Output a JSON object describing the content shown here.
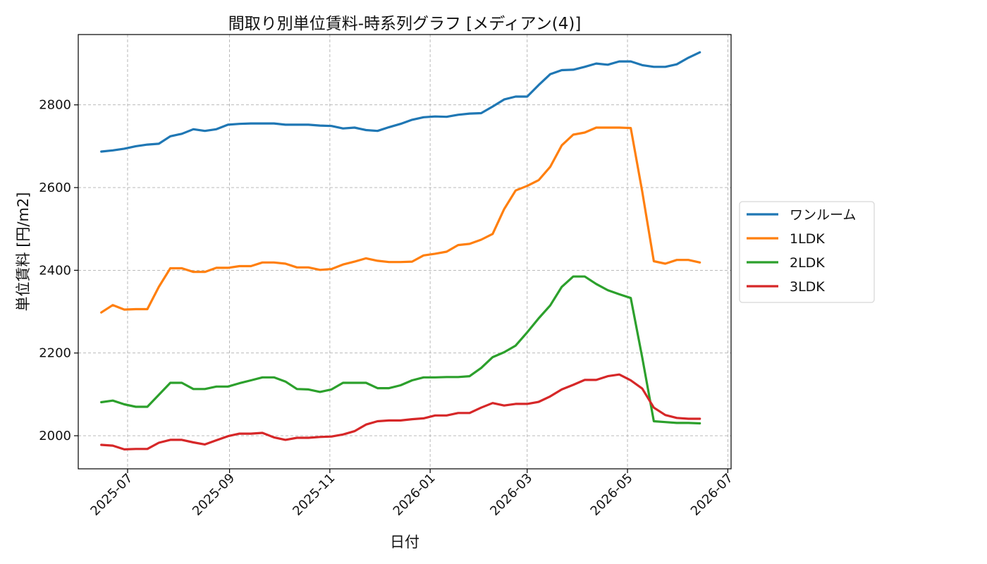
{
  "chart_data": {
    "type": "line",
    "title": "間取り別単位賃料-時系列グラフ [メディアン(4)]",
    "xlabel": "日付",
    "ylabel": "単位賃料 [円/m2]",
    "x_axis_type": "date",
    "xlim": [
      "2025-06-01",
      "2026-07-03"
    ],
    "ylim": [
      1920,
      2970
    ],
    "x_ticks": [
      "2025-07",
      "2025-09",
      "2025-11",
      "2026-01",
      "2026-03",
      "2026-05",
      "2026-07"
    ],
    "y_ticks": [
      2000,
      2200,
      2400,
      2600,
      2800
    ],
    "grid": true,
    "legend_position": "right",
    "x": [
      "2025-06-15",
      "2025-06-22",
      "2025-06-29",
      "2025-07-06",
      "2025-07-13",
      "2025-07-20",
      "2025-07-27",
      "2025-08-03",
      "2025-08-10",
      "2025-08-17",
      "2025-08-24",
      "2025-08-31",
      "2025-09-07",
      "2025-09-14",
      "2025-09-21",
      "2025-09-28",
      "2025-10-05",
      "2025-10-12",
      "2025-10-19",
      "2025-10-26",
      "2025-11-02",
      "2025-11-09",
      "2025-11-16",
      "2025-11-23",
      "2025-11-30",
      "2025-12-07",
      "2025-12-14",
      "2025-12-21",
      "2025-12-28",
      "2026-01-04",
      "2026-01-11",
      "2026-01-18",
      "2026-01-25",
      "2026-02-01",
      "2026-02-08",
      "2026-02-15",
      "2026-02-22",
      "2026-03-01",
      "2026-03-08",
      "2026-03-15",
      "2026-03-22",
      "2026-03-29",
      "2026-04-05",
      "2026-04-12",
      "2026-04-19",
      "2026-04-26",
      "2026-05-03",
      "2026-05-10",
      "2026-05-17",
      "2026-05-24",
      "2026-05-31",
      "2026-06-07",
      "2026-06-14"
    ],
    "series": [
      {
        "name": "ワンルーム",
        "color": "#1f77b4",
        "values": [
          2687,
          2690,
          2694,
          2700,
          2704,
          2706,
          2724,
          2730,
          2741,
          2737,
          2741,
          2752,
          2754,
          2755,
          2755,
          2755,
          2752,
          2752,
          2752,
          2750,
          2749,
          2743,
          2745,
          2739,
          2737,
          2746,
          2754,
          2764,
          2770,
          2772,
          2771,
          2776,
          2779,
          2780,
          2796,
          2813,
          2820,
          2820,
          2848,
          2874,
          2884,
          2885,
          2892,
          2900,
          2897,
          2905,
          2905,
          2896,
          2892,
          2892,
          2898,
          2914,
          2927
        ]
      },
      {
        "name": "1LDK",
        "color": "#ff7f0e",
        "values": [
          2298,
          2316,
          2305,
          2306,
          2306,
          2360,
          2405,
          2405,
          2396,
          2396,
          2406,
          2406,
          2410,
          2410,
          2419,
          2419,
          2416,
          2407,
          2407,
          2401,
          2403,
          2414,
          2421,
          2429,
          2423,
          2420,
          2420,
          2421,
          2436,
          2440,
          2445,
          2461,
          2464,
          2474,
          2488,
          2548,
          2593,
          2604,
          2618,
          2650,
          2702,
          2728,
          2733,
          2745,
          2745,
          2745,
          2744,
          2590,
          2422,
          2416,
          2425,
          2425,
          2419
        ]
      },
      {
        "name": "2LDK",
        "color": "#2ca02c",
        "values": [
          2081,
          2085,
          2076,
          2070,
          2070,
          2099,
          2128,
          2128,
          2113,
          2113,
          2119,
          2119,
          2127,
          2134,
          2141,
          2141,
          2131,
          2113,
          2112,
          2106,
          2112,
          2128,
          2128,
          2128,
          2115,
          2115,
          2122,
          2134,
          2141,
          2141,
          2142,
          2142,
          2144,
          2164,
          2190,
          2202,
          2218,
          2250,
          2284,
          2315,
          2360,
          2385,
          2385,
          2367,
          2352,
          2342,
          2333,
          2189,
          2035,
          2033,
          2031,
          2031,
          2030
        ]
      },
      {
        "name": "3LDK",
        "color": "#d62728",
        "values": [
          1978,
          1976,
          1967,
          1968,
          1968,
          1983,
          1990,
          1990,
          1984,
          1979,
          1989,
          1999,
          2005,
          2005,
          2007,
          1996,
          1990,
          1995,
          1995,
          1997,
          1998,
          2003,
          2011,
          2027,
          2035,
          2037,
          2037,
          2040,
          2042,
          2049,
          2049,
          2055,
          2055,
          2068,
          2079,
          2073,
          2077,
          2077,
          2082,
          2095,
          2112,
          2123,
          2135,
          2135,
          2144,
          2148,
          2134,
          2114,
          2068,
          2050,
          2043,
          2041,
          2041
        ]
      }
    ]
  }
}
